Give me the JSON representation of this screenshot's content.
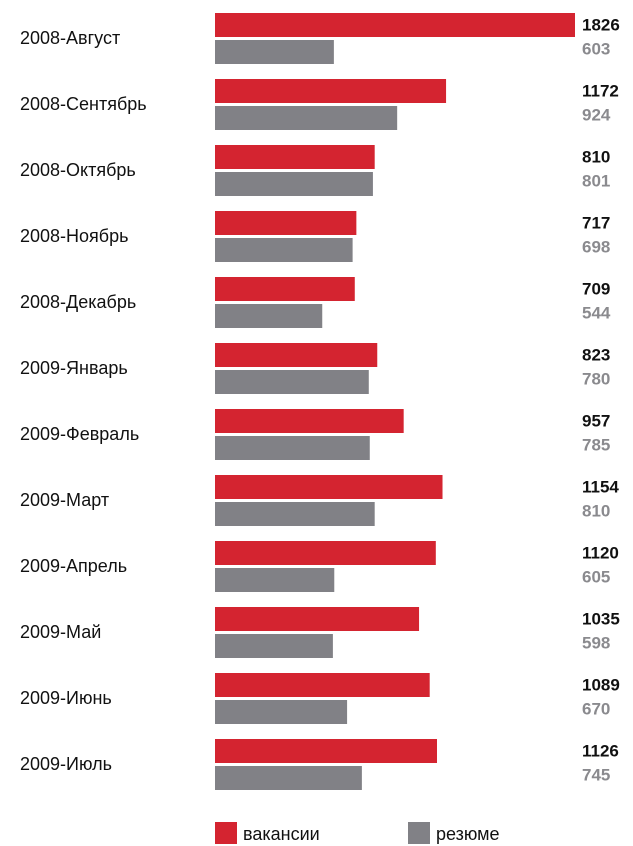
{
  "chart_data": {
    "type": "bar",
    "orientation": "horizontal",
    "categories": [
      "2008-Август",
      "2008-Сентябрь",
      "2008-Октябрь",
      "2008-Ноябрь",
      "2008-Декабрь",
      "2009-Январь",
      "2009-Февраль",
      "2009-Март",
      "2009-Апрель",
      "2009-Май",
      "2009-Июнь",
      "2009-Июль"
    ],
    "series": [
      {
        "name": "вакансии",
        "color": "#d42430",
        "values": [
          1826,
          1172,
          810,
          717,
          709,
          823,
          957,
          1154,
          1120,
          1035,
          1089,
          1126
        ]
      },
      {
        "name": "резюме",
        "color": "#818186",
        "values": [
          603,
          924,
          801,
          698,
          544,
          780,
          785,
          810,
          605,
          598,
          670,
          745
        ]
      }
    ]
  }
}
